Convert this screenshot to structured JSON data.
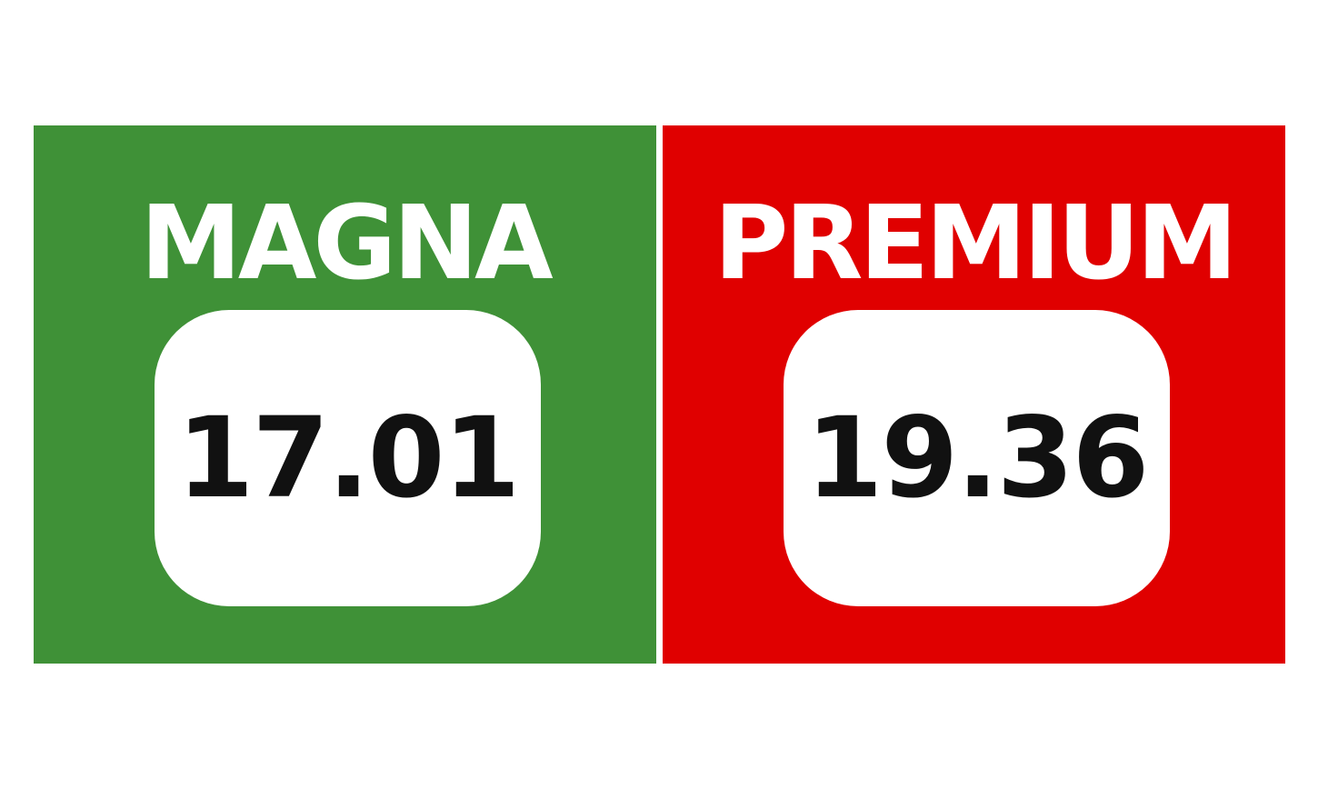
{
  "panels": [
    {
      "title": "MAGNA",
      "price": "17.01",
      "color": "#3f9137"
    },
    {
      "title": "PREMIUM",
      "price": "19.36",
      "color": "#e00000"
    }
  ]
}
